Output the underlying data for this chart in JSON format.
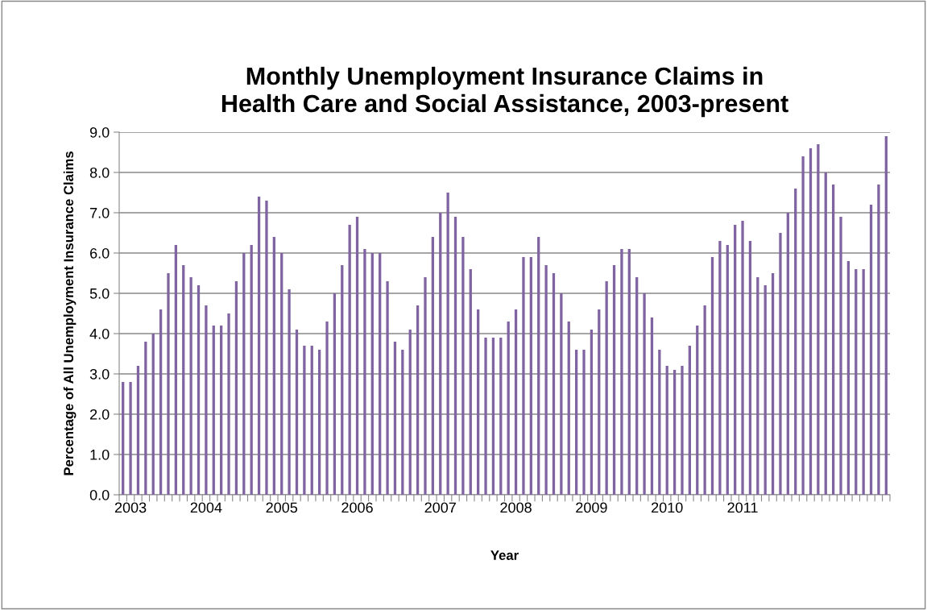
{
  "chart_data": {
    "type": "bar",
    "title": "Monthly Unemployment Insurance Claims in\nHealth Care and Social Assistance, 2003-present",
    "xlabel": "Year",
    "ylabel": "Percentage of All Unemployment Insurance Claims",
    "categories": [
      null,
      "2003",
      null,
      null,
      null,
      null,
      null,
      null,
      null,
      null,
      null,
      "2004",
      null,
      null,
      null,
      null,
      null,
      null,
      null,
      null,
      null,
      "2005",
      null,
      null,
      null,
      null,
      null,
      null,
      null,
      null,
      null,
      "2006",
      null,
      null,
      null,
      null,
      null,
      null,
      null,
      null,
      null,
      null,
      "2007",
      null,
      null,
      null,
      null,
      null,
      null,
      null,
      null,
      null,
      "2008",
      null,
      null,
      null,
      null,
      null,
      null,
      null,
      null,
      null,
      "2009",
      null,
      null,
      null,
      null,
      null,
      null,
      null,
      null,
      null,
      "2010",
      null,
      null,
      null,
      null,
      null,
      null,
      null,
      null,
      null,
      "2011",
      null,
      null,
      null,
      null,
      null,
      null,
      null,
      null,
      null,
      null,
      null,
      null,
      null,
      null,
      null,
      null,
      null,
      null,
      null
    ],
    "values": [
      2.8,
      2.8,
      3.2,
      3.8,
      4.0,
      4.6,
      5.5,
      6.2,
      5.7,
      5.4,
      5.2,
      4.7,
      4.2,
      4.2,
      4.5,
      5.3,
      6.0,
      6.2,
      7.4,
      7.3,
      6.4,
      6.0,
      5.1,
      4.1,
      3.7,
      3.7,
      3.6,
      4.3,
      5.0,
      5.7,
      6.7,
      6.9,
      6.1,
      6.0,
      6.0,
      5.3,
      3.8,
      3.6,
      4.1,
      4.7,
      5.4,
      6.4,
      7.0,
      7.5,
      6.9,
      6.4,
      5.6,
      4.6,
      3.9,
      3.9,
      3.9,
      4.3,
      4.6,
      5.9,
      5.9,
      6.4,
      5.7,
      5.5,
      5.0,
      4.3,
      3.6,
      3.6,
      4.1,
      4.6,
      5.3,
      5.7,
      6.1,
      6.1,
      5.4,
      5.0,
      4.4,
      3.6,
      3.2,
      3.1,
      3.2,
      3.7,
      4.2,
      4.7,
      5.9,
      6.3,
      6.2,
      6.7,
      6.8,
      6.3,
      5.4,
      5.2,
      5.5,
      6.5,
      7.0,
      7.6,
      8.4,
      8.6,
      8.7,
      8.0,
      7.7,
      6.9,
      5.8,
      5.6,
      5.6,
      7.2,
      7.7,
      8.9
    ],
    "color": "#8064a2",
    "ylim": [
      0,
      9
    ],
    "yticks": [
      {
        "value": 0,
        "label": "0.0"
      },
      {
        "value": 1,
        "label": "1.0"
      },
      {
        "value": 2,
        "label": "2.0"
      },
      {
        "value": 3,
        "label": "3.0"
      },
      {
        "value": 4,
        "label": "4.0"
      },
      {
        "value": 5,
        "label": "5.0"
      },
      {
        "value": 6,
        "label": "6.0"
      },
      {
        "value": 7,
        "label": "7.0"
      },
      {
        "value": 8,
        "label": "8.0"
      },
      {
        "value": 9,
        "label": "9.0"
      }
    ],
    "grid": "y",
    "legend": false
  }
}
